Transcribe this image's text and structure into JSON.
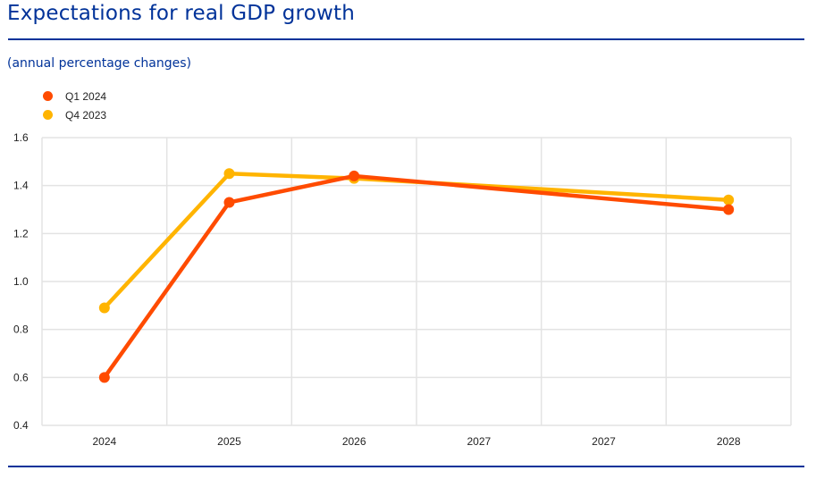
{
  "header": {
    "title": "Expectations for real GDP growth",
    "subtitle": "(annual percentage changes)"
  },
  "chart_data": {
    "type": "line",
    "title": "Expectations for real GDP growth",
    "subtitle": "(annual percentage changes)",
    "xlabel": "",
    "ylabel": "",
    "categories": [
      "2024",
      "2025",
      "2026",
      "2027",
      "2027",
      "2028"
    ],
    "ylim": [
      0.4,
      1.6
    ],
    "yticks": [
      "0.4",
      "0.6",
      "0.8",
      "1.0",
      "1.2",
      "1.4",
      "1.6"
    ],
    "grid": true,
    "legend_position": "top-left",
    "series": [
      {
        "name": "Q1 2024",
        "color": "#ff4b00",
        "values": [
          0.6,
          1.33,
          1.44,
          null,
          null,
          1.3
        ]
      },
      {
        "name": "Q4 2023",
        "color": "#ffb400",
        "values": [
          0.89,
          1.45,
          1.43,
          null,
          null,
          1.34
        ]
      }
    ]
  }
}
